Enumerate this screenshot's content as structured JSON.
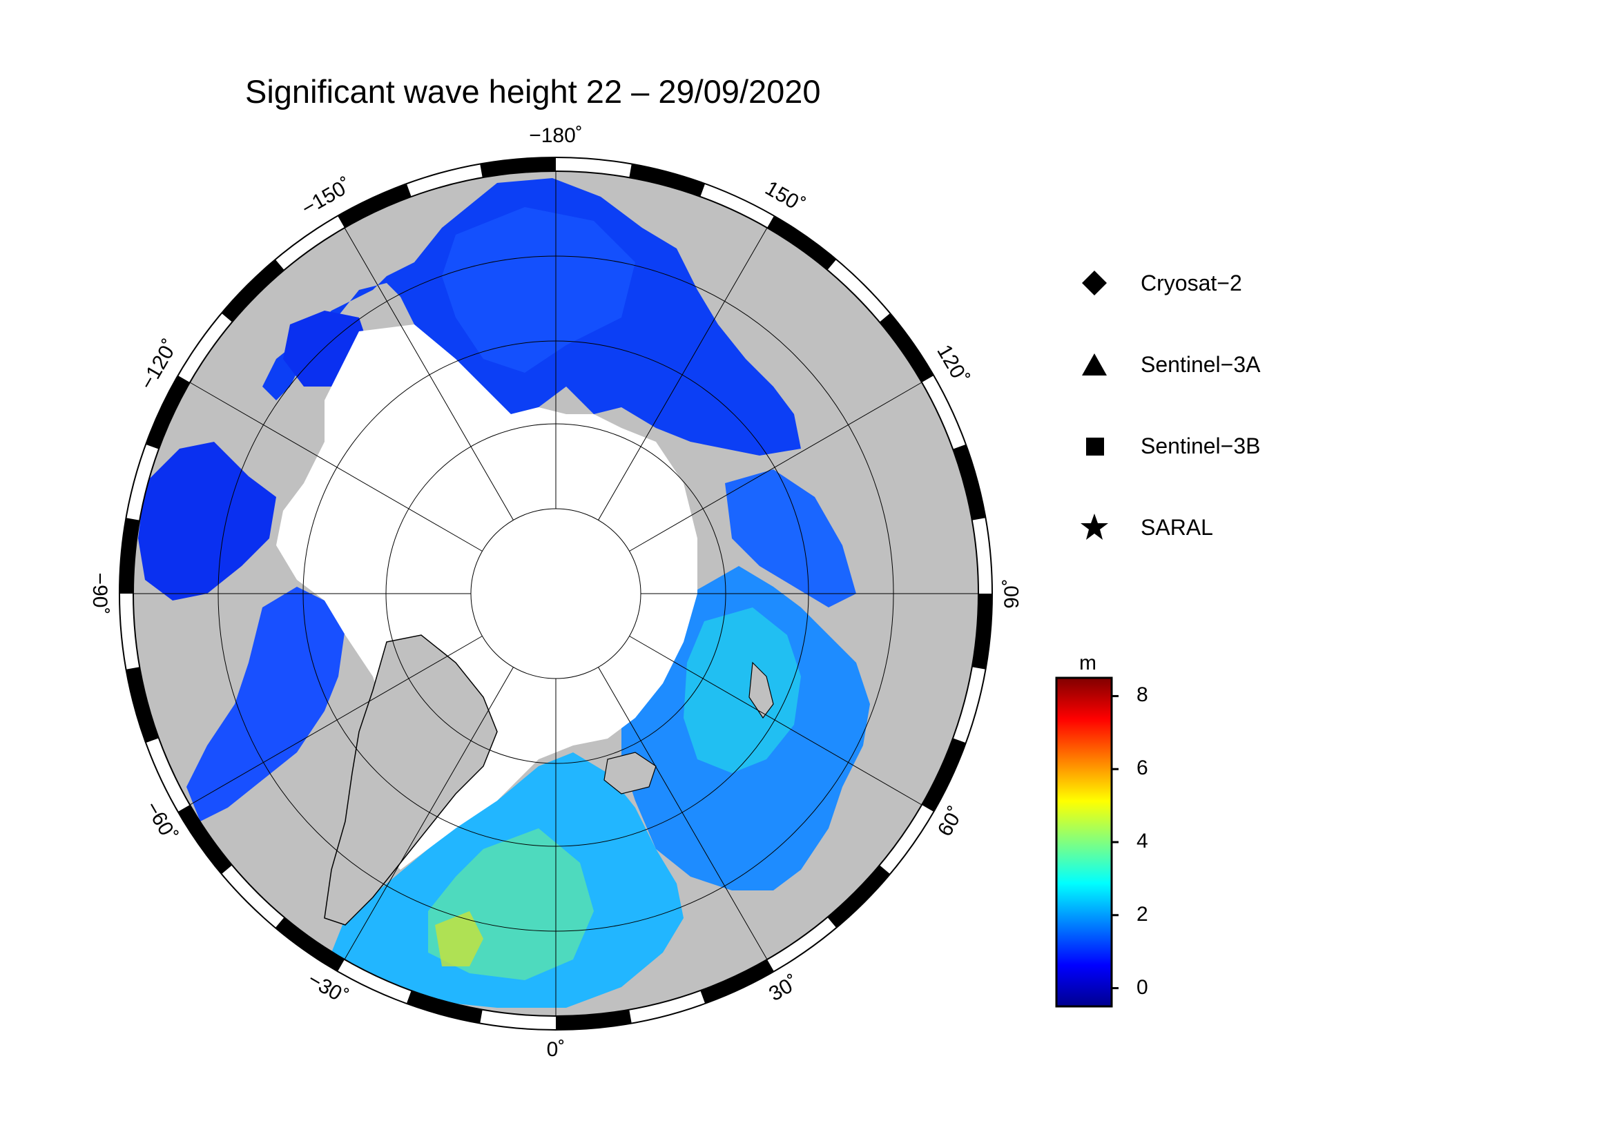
{
  "title": "Significant wave height 22 – 29/09/2020",
  "longitude_labels": [
    {
      "lon": -180,
      "text": "−180˚"
    },
    {
      "lon": -150,
      "text": "−150˚"
    },
    {
      "lon": -120,
      "text": "−120˚"
    },
    {
      "lon": -90,
      "text": "−90˚"
    },
    {
      "lon": -60,
      "text": "−60˚"
    },
    {
      "lon": -30,
      "text": "−30˚"
    },
    {
      "lon": 0,
      "text": "0˚"
    },
    {
      "lon": 30,
      "text": "30˚"
    },
    {
      "lon": 60,
      "text": "60˚"
    },
    {
      "lon": 90,
      "text": "90˚"
    },
    {
      "lon": 120,
      "text": "120˚"
    },
    {
      "lon": 150,
      "text": "150˚"
    }
  ],
  "legend": [
    {
      "symbol": "diamond-icon",
      "label": "Cryosat−2"
    },
    {
      "symbol": "triangle-icon",
      "label": "Sentinel−3A"
    },
    {
      "symbol": "square-icon",
      "label": "Sentinel−3B"
    },
    {
      "symbol": "star-icon",
      "label": "SARAL"
    }
  ],
  "colorbar": {
    "unit": "m",
    "min": -0.5,
    "max": 8.5,
    "ticks": [
      {
        "value": 0,
        "text": "0"
      },
      {
        "value": 2,
        "text": "2"
      },
      {
        "value": 4,
        "text": "4"
      },
      {
        "value": 6,
        "text": "6"
      },
      {
        "value": 8,
        "text": "8"
      }
    ],
    "colormap": [
      "#00008f",
      "#0000ff",
      "#0080ff",
      "#00ffff",
      "#80ff80",
      "#ffff00",
      "#ff8000",
      "#ff0000",
      "#800000"
    ]
  },
  "map": {
    "projection": "north polar stereographic",
    "graticule_lon_step": 30,
    "colors": {
      "land": "#c0c0c0",
      "ice": "#ffffff",
      "frame": "#000000",
      "coast": "#000000"
    }
  }
}
